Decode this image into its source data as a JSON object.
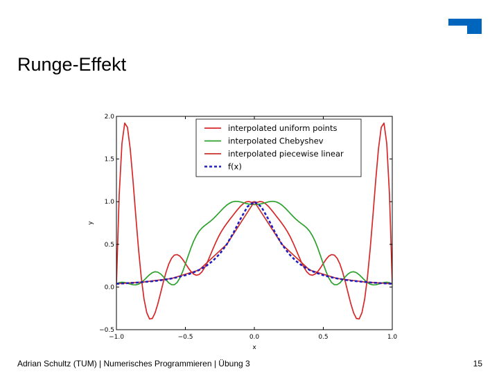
{
  "slide": {
    "title": "Runge-Effekt",
    "footer": "Adrian Schultz (TUM) | Numerisches Programmieren | Übung 3",
    "page_number": "15",
    "logo_icon": "tum-logo-icon",
    "logo_color": "#0065BD"
  },
  "chart_data": {
    "type": "line",
    "xlabel": "x",
    "ylabel": "y",
    "xlim": [
      -1.0,
      1.0
    ],
    "ylim": [
      -0.5,
      2.0
    ],
    "xticks": [
      -1.0,
      -0.5,
      0.0,
      0.5,
      1.0
    ],
    "xtick_labels": [
      "−1.0",
      "−0.5",
      "0.0",
      "0.5",
      "1.0"
    ],
    "yticks": [
      -0.5,
      0.0,
      0.5,
      1.0,
      1.5,
      2.0
    ],
    "ytick_labels": [
      "−0.5",
      "0.0",
      "0.5",
      "1.0",
      "1.5",
      "2.0"
    ],
    "grid": false,
    "legend_position": "top-right",
    "series": [
      {
        "name": "interpolated uniform points",
        "color": "#d62728",
        "style": "solid",
        "x": [
          -1.0,
          -0.98,
          -0.96,
          -0.94,
          -0.92,
          -0.9,
          -0.88,
          -0.86,
          -0.84,
          -0.82,
          -0.8,
          -0.78,
          -0.76,
          -0.74,
          -0.72,
          -0.7,
          -0.68,
          -0.66,
          -0.64,
          -0.62,
          -0.6,
          -0.58,
          -0.56,
          -0.54,
          -0.52,
          -0.5,
          -0.48,
          -0.46,
          -0.44,
          -0.42,
          -0.4,
          -0.38,
          -0.36,
          -0.34,
          -0.32,
          -0.3,
          -0.28,
          -0.26,
          -0.24,
          -0.22,
          -0.2,
          -0.18,
          -0.16,
          -0.14,
          -0.12,
          -0.1,
          -0.08,
          -0.06,
          -0.04,
          -0.02,
          0.0,
          0.02,
          0.04,
          0.06,
          0.08,
          0.1,
          0.12,
          0.14,
          0.16,
          0.18,
          0.2,
          0.22,
          0.24,
          0.26,
          0.28,
          0.3,
          0.32,
          0.34,
          0.36,
          0.38,
          0.4,
          0.42,
          0.44,
          0.46,
          0.48,
          0.5,
          0.52,
          0.54,
          0.56,
          0.58,
          0.6,
          0.62,
          0.64,
          0.66,
          0.68,
          0.7,
          0.72,
          0.74,
          0.76,
          0.78,
          0.8,
          0.82,
          0.84,
          0.86,
          0.88,
          0.9,
          0.92,
          0.94,
          0.96,
          0.98,
          1.0
        ],
        "y": [
          0.038,
          1.079,
          1.682,
          1.921,
          1.871,
          1.619,
          1.25,
          0.841,
          0.448,
          0.113,
          -0.14,
          -0.301,
          -0.374,
          -0.369,
          -0.304,
          -0.199,
          -0.072,
          0.058,
          0.175,
          0.271,
          0.338,
          0.374,
          0.38,
          0.362,
          0.324,
          0.276,
          0.226,
          0.182,
          0.151,
          0.138,
          0.147,
          0.178,
          0.229,
          0.295,
          0.37,
          0.447,
          0.521,
          0.589,
          0.648,
          0.699,
          0.745,
          0.788,
          0.829,
          0.871,
          0.911,
          0.948,
          0.977,
          0.997,
          1.002,
          0.991,
          1.0,
          0.991,
          1.002,
          0.997,
          0.977,
          0.948,
          0.911,
          0.871,
          0.829,
          0.788,
          0.745,
          0.699,
          0.648,
          0.589,
          0.521,
          0.447,
          0.37,
          0.295,
          0.229,
          0.178,
          0.147,
          0.138,
          0.151,
          0.182,
          0.226,
          0.276,
          0.324,
          0.362,
          0.38,
          0.374,
          0.338,
          0.271,
          0.175,
          0.058,
          -0.072,
          -0.199,
          -0.304,
          -0.369,
          -0.374,
          -0.301,
          -0.14,
          0.113,
          0.448,
          0.841,
          1.25,
          1.619,
          1.871,
          1.921,
          1.682,
          1.079,
          0.038
        ]
      },
      {
        "name": "interpolated Chebyshev",
        "color": "#2ca02c",
        "style": "solid",
        "x": [
          -1.0,
          -0.98,
          -0.96,
          -0.94,
          -0.92,
          -0.9,
          -0.88,
          -0.86,
          -0.84,
          -0.82,
          -0.8,
          -0.78,
          -0.76,
          -0.74,
          -0.72,
          -0.7,
          -0.68,
          -0.66,
          -0.64,
          -0.62,
          -0.6,
          -0.58,
          -0.56,
          -0.54,
          -0.52,
          -0.5,
          -0.48,
          -0.46,
          -0.44,
          -0.42,
          -0.4,
          -0.38,
          -0.36,
          -0.34,
          -0.32,
          -0.3,
          -0.28,
          -0.26,
          -0.24,
          -0.22,
          -0.2,
          -0.18,
          -0.16,
          -0.14,
          -0.12,
          -0.1,
          -0.08,
          -0.06,
          -0.04,
          -0.02,
          0.0,
          0.02,
          0.04,
          0.06,
          0.08,
          0.1,
          0.12,
          0.14,
          0.16,
          0.18,
          0.2,
          0.22,
          0.24,
          0.26,
          0.28,
          0.3,
          0.32,
          0.34,
          0.36,
          0.38,
          0.4,
          0.42,
          0.44,
          0.46,
          0.48,
          0.5,
          0.52,
          0.54,
          0.56,
          0.58,
          0.6,
          0.62,
          0.64,
          0.66,
          0.68,
          0.7,
          0.72,
          0.74,
          0.76,
          0.78,
          0.8,
          0.82,
          0.84,
          0.86,
          0.88,
          0.9,
          0.92,
          0.94,
          0.96,
          0.98,
          1.0
        ],
        "y": [
          0.038,
          0.051,
          0.056,
          0.053,
          0.044,
          0.034,
          0.026,
          0.025,
          0.033,
          0.052,
          0.08,
          0.113,
          0.144,
          0.168,
          0.179,
          0.174,
          0.154,
          0.121,
          0.083,
          0.048,
          0.027,
          0.027,
          0.053,
          0.105,
          0.18,
          0.269,
          0.364,
          0.456,
          0.538,
          0.604,
          0.655,
          0.692,
          0.72,
          0.744,
          0.769,
          0.797,
          0.829,
          0.863,
          0.898,
          0.931,
          0.96,
          0.982,
          0.997,
          1.004,
          1.003,
          0.997,
          0.988,
          0.979,
          0.972,
          0.968,
          0.966,
          0.968,
          0.972,
          0.979,
          0.988,
          0.997,
          1.003,
          1.004,
          0.997,
          0.982,
          0.96,
          0.931,
          0.898,
          0.863,
          0.829,
          0.797,
          0.769,
          0.744,
          0.72,
          0.692,
          0.655,
          0.604,
          0.538,
          0.456,
          0.364,
          0.269,
          0.18,
          0.105,
          0.053,
          0.027,
          0.027,
          0.048,
          0.083,
          0.121,
          0.154,
          0.174,
          0.179,
          0.168,
          0.144,
          0.113,
          0.08,
          0.052,
          0.033,
          0.025,
          0.026,
          0.034,
          0.044,
          0.053,
          0.056,
          0.051,
          0.038
        ]
      },
      {
        "name": "interpolated piecewise linear",
        "color": "#c9302c",
        "style": "solid",
        "x": [
          -1.0,
          -0.8,
          -0.6,
          -0.4,
          -0.2,
          0.0,
          0.2,
          0.4,
          0.6,
          0.8,
          1.0
        ],
        "y": [
          0.038,
          0.059,
          0.1,
          0.2,
          0.5,
          1.0,
          0.5,
          0.2,
          0.1,
          0.059,
          0.038
        ]
      },
      {
        "name": "f(x)",
        "color": "#1f1fbf",
        "style": "dashed",
        "x": [
          -1.0,
          -0.95,
          -0.9,
          -0.85,
          -0.8,
          -0.75,
          -0.7,
          -0.65,
          -0.6,
          -0.55,
          -0.5,
          -0.45,
          -0.4,
          -0.35,
          -0.3,
          -0.25,
          -0.2,
          -0.15,
          -0.1,
          -0.05,
          0.0,
          0.05,
          0.1,
          0.15,
          0.2,
          0.25,
          0.3,
          0.35,
          0.4,
          0.45,
          0.5,
          0.55,
          0.6,
          0.65,
          0.7,
          0.75,
          0.8,
          0.85,
          0.9,
          0.95,
          1.0
        ],
        "y": [
          0.038,
          0.042,
          0.047,
          0.052,
          0.059,
          0.066,
          0.075,
          0.086,
          0.1,
          0.117,
          0.138,
          0.165,
          0.2,
          0.246,
          0.308,
          0.39,
          0.5,
          0.64,
          0.8,
          0.941,
          1.0,
          0.941,
          0.8,
          0.64,
          0.5,
          0.39,
          0.308,
          0.246,
          0.2,
          0.165,
          0.138,
          0.117,
          0.1,
          0.086,
          0.075,
          0.066,
          0.059,
          0.052,
          0.047,
          0.042,
          0.038
        ]
      }
    ]
  }
}
